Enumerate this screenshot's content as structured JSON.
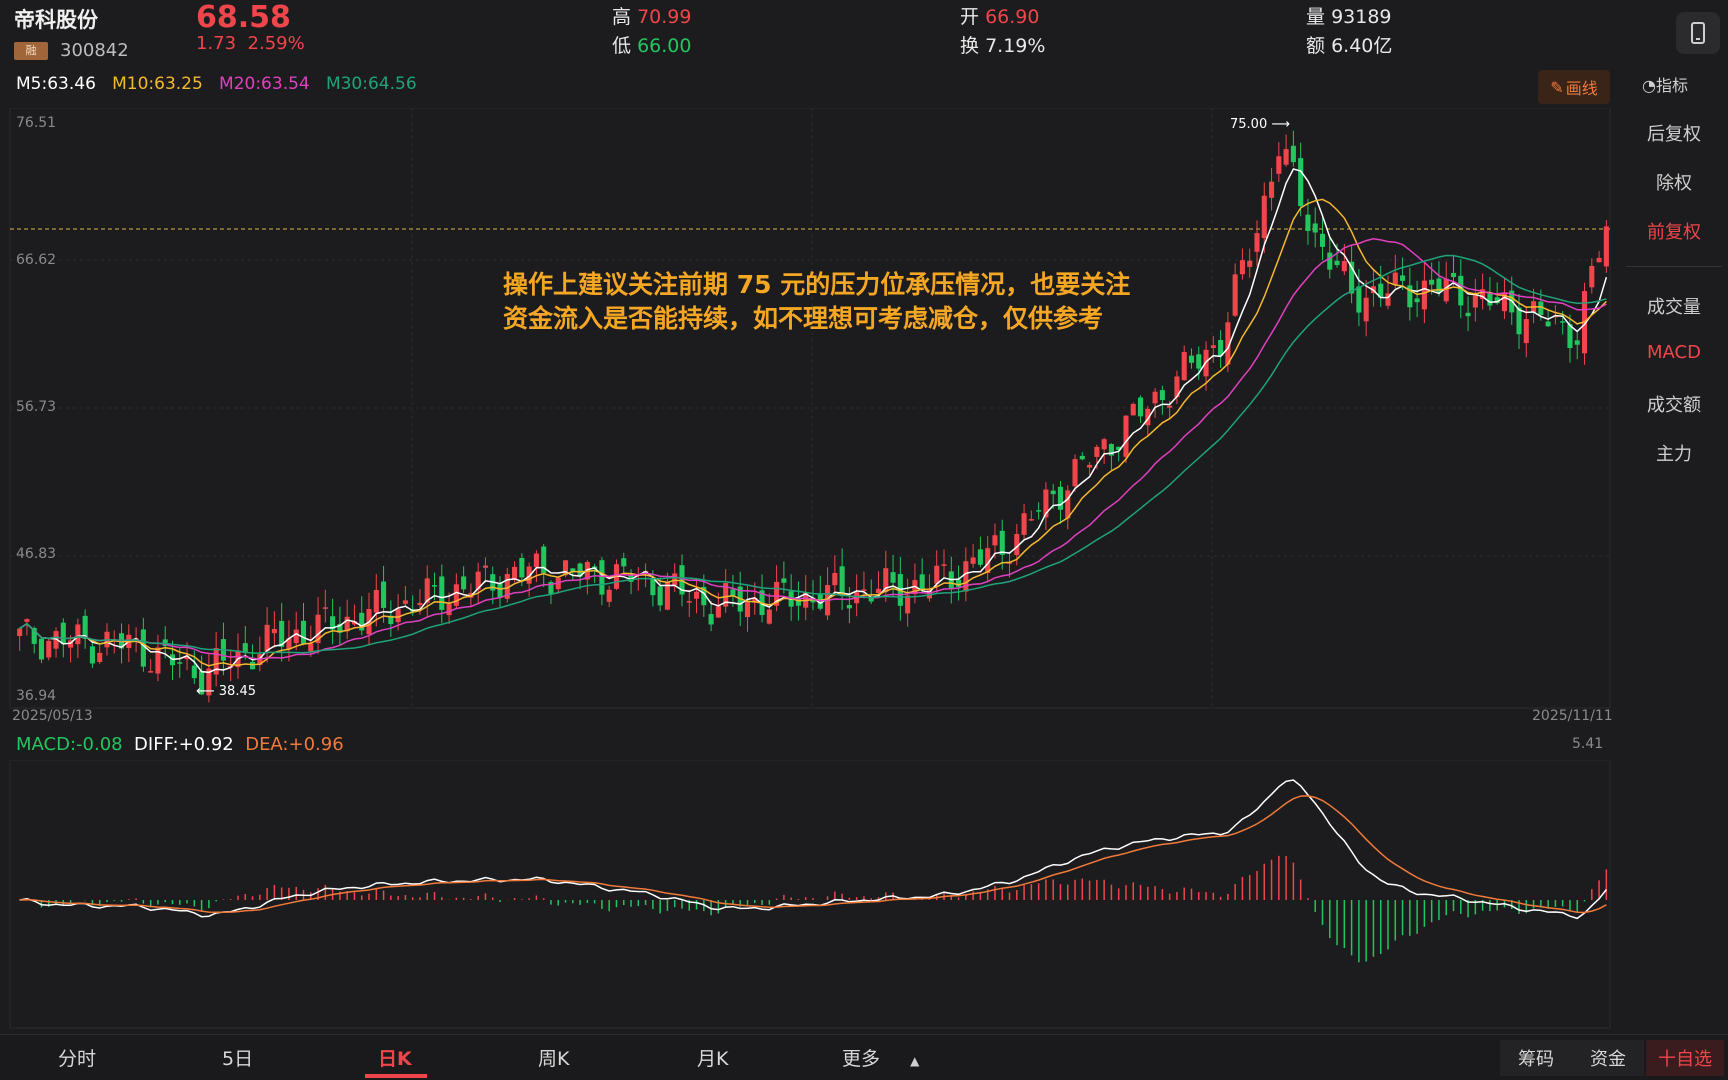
{
  "header": {
    "name": "帝科股份",
    "badge": "融",
    "code": "300842",
    "price": "68.58",
    "change": "1.73",
    "change_pct": "2.59%",
    "high_label": "高",
    "high": "70.99",
    "low_label": "低",
    "low": "66.00",
    "open_label": "开",
    "open": "66.90",
    "turnover_label": "换",
    "turnover": "7.19%",
    "volume_label": "量",
    "volume": "93189",
    "amount_label": "额",
    "amount": "6.40亿"
  },
  "ma": {
    "m5": "M5:63.46",
    "m10": "M10:63.25",
    "m20": "M20:63.54",
    "m30": "M30:64.56"
  },
  "toolbar": {
    "draw_label": "画线",
    "indicator_label": "指标"
  },
  "sidebar": {
    "items": [
      {
        "label": "后复权"
      },
      {
        "label": "除权"
      },
      {
        "label": "前复权"
      },
      {
        "label": "成交量"
      },
      {
        "label": "MACD"
      },
      {
        "label": "成交额"
      },
      {
        "label": "主力"
      }
    ]
  },
  "axis": {
    "y_labels": [
      "76.51",
      "66.62",
      "56.73",
      "46.83",
      "36.94"
    ],
    "start_date": "2025/05/13",
    "end_date": "2025/11/11",
    "high_mark": "75.00",
    "low_mark": "38.45",
    "macd_max": "5.41"
  },
  "annotation": {
    "line1": "操作上建议关注前期 75 元的压力位承压情况，也要关注",
    "line2": "资金流入是否能持续，如不理想可考虑减仓，仅供参考"
  },
  "macd": {
    "macd": "MACD:-0.08",
    "diff": "DIFF:+0.92",
    "dea": "DEA:+0.96"
  },
  "tabs": [
    {
      "label": "分时"
    },
    {
      "label": "5日"
    },
    {
      "label": "日K"
    },
    {
      "label": "周K"
    },
    {
      "label": "月K"
    },
    {
      "label": "更多"
    }
  ],
  "bottom_right": {
    "chips": "筹码",
    "funds": "资金",
    "watch": "十自选"
  },
  "colors": {
    "up": "#f0454a",
    "down": "#22c55e",
    "m5": "#ffffff",
    "m10": "#f5b82e",
    "m20": "#e040c0",
    "m30": "#1fa37a",
    "dea": "#f07a3a"
  }
}
